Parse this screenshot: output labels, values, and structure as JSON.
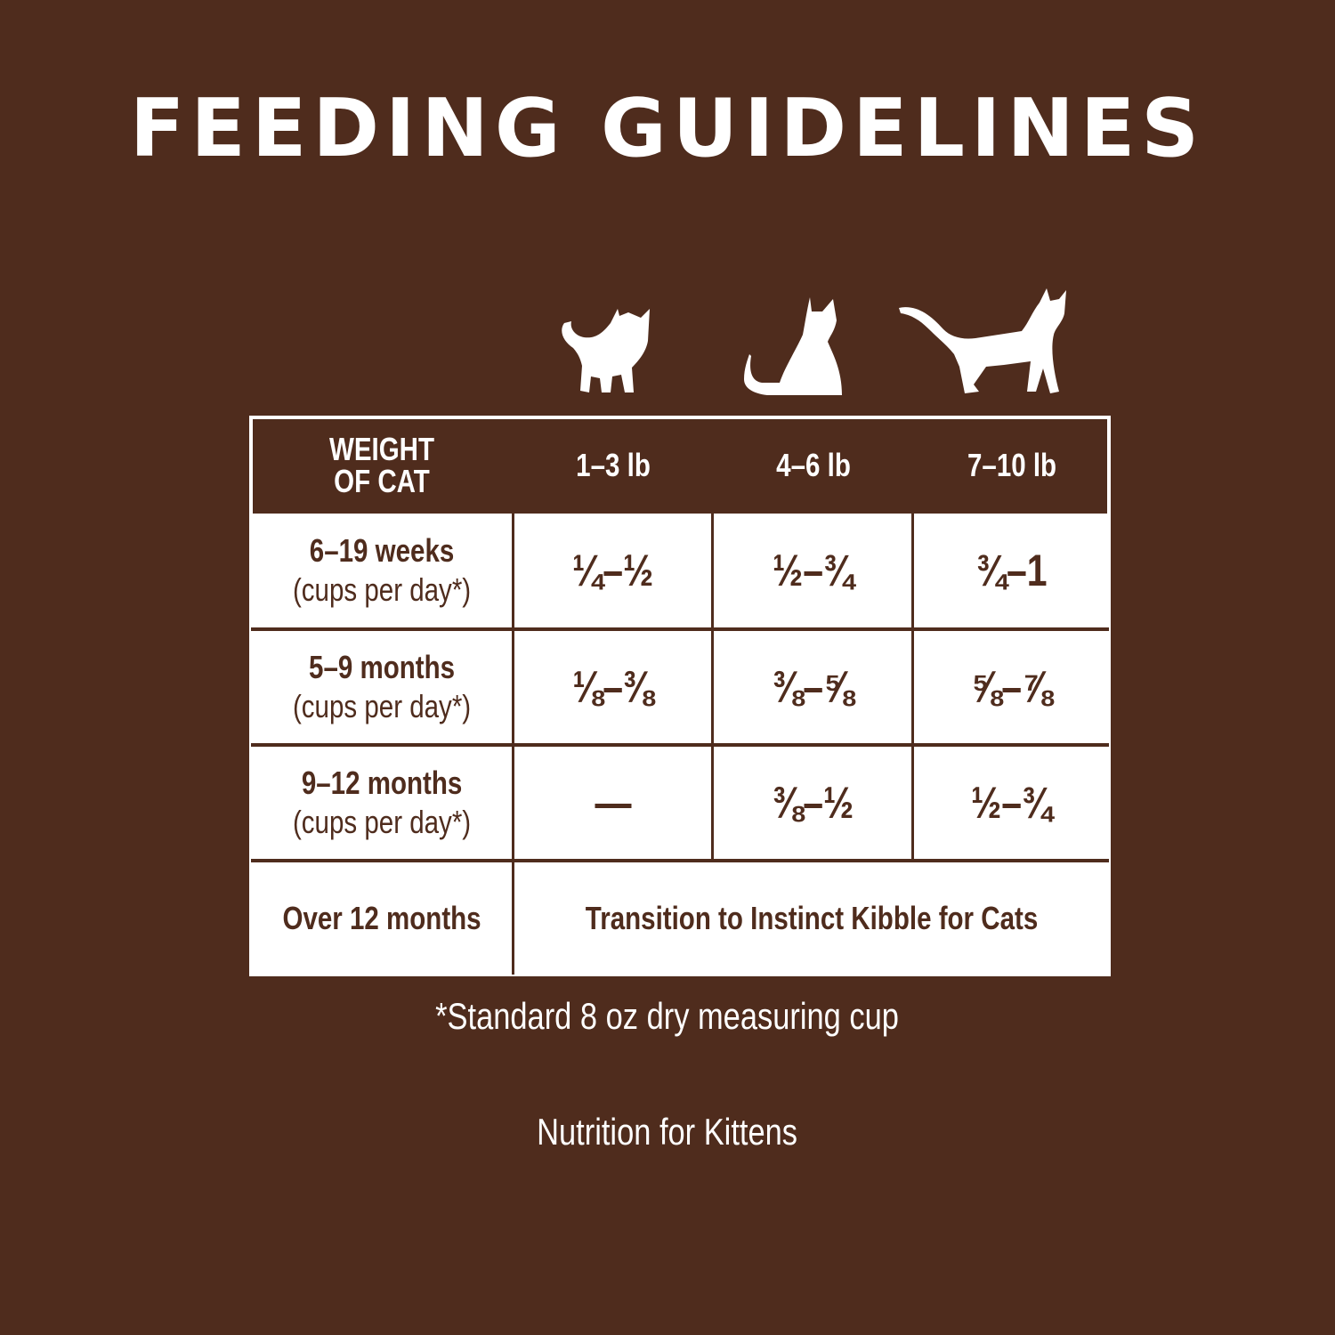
{
  "title": "FEEDING GUIDELINES",
  "icons": [
    "kitten-icon",
    "sitting-cat-icon",
    "standing-cat-icon"
  ],
  "colors": {
    "background": "#4f2c1d",
    "table": "#ffffff"
  },
  "table": {
    "header": {
      "label": "WEIGHT OF CAT",
      "label_line1": "WEIGHT",
      "label_line2": "OF CAT",
      "columns": [
        "1–3 lb",
        "4–6 lb",
        "7–10 lb"
      ]
    },
    "rows": [
      {
        "age": "6–19 weeks",
        "unit": "(cups per day*)",
        "values": [
          "¼–½",
          "½–¾",
          "¾–1"
        ]
      },
      {
        "age": "5–9 months",
        "unit": "(cups per day*)",
        "values": [
          "⅛–⅜",
          "⅜–⅝",
          "⅝–⅞"
        ]
      },
      {
        "age": "9–12 months",
        "unit": "(cups per day*)",
        "values": [
          "—",
          "⅜–½",
          "½–¾"
        ]
      }
    ],
    "last_row": {
      "age": "Over 12 months",
      "note": "Transition to Instinct Kibble for Cats"
    }
  },
  "footnote": "*Standard 8 oz dry measuring cup",
  "subtitle": "Nutrition for Kittens"
}
